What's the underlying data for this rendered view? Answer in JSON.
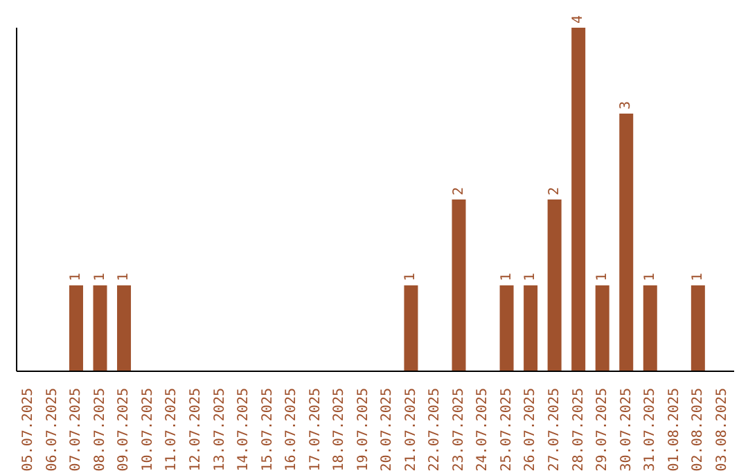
{
  "chart_data": {
    "type": "bar",
    "categories": [
      "05.07.2025",
      "06.07.2025",
      "07.07.2025",
      "08.07.2025",
      "09.07.2025",
      "10.07.2025",
      "11.07.2025",
      "12.07.2025",
      "13.07.2025",
      "14.07.2025",
      "15.07.2025",
      "16.07.2025",
      "17.07.2025",
      "18.07.2025",
      "19.07.2025",
      "20.07.2025",
      "21.07.2025",
      "22.07.2025",
      "23.07.2025",
      "24.07.2025",
      "25.07.2025",
      "26.07.2025",
      "27.07.2025",
      "28.07.2025",
      "29.07.2025",
      "30.07.2025",
      "31.07.2025",
      "01.08.2025",
      "02.08.2025",
      "03.08.2025"
    ],
    "values": [
      0,
      0,
      1,
      1,
      1,
      0,
      0,
      0,
      0,
      0,
      0,
      0,
      0,
      0,
      0,
      0,
      1,
      0,
      2,
      0,
      1,
      1,
      2,
      4,
      1,
      3,
      1,
      0,
      1,
      0
    ],
    "color": "#a0522d",
    "value_labels": [
      null,
      null,
      "1",
      "1",
      "1",
      null,
      null,
      null,
      null,
      null,
      null,
      null,
      null,
      null,
      null,
      null,
      "1",
      null,
      "2",
      null,
      "1",
      "1",
      "2",
      "4",
      "1",
      "3",
      "1",
      null,
      "1",
      null
    ]
  }
}
